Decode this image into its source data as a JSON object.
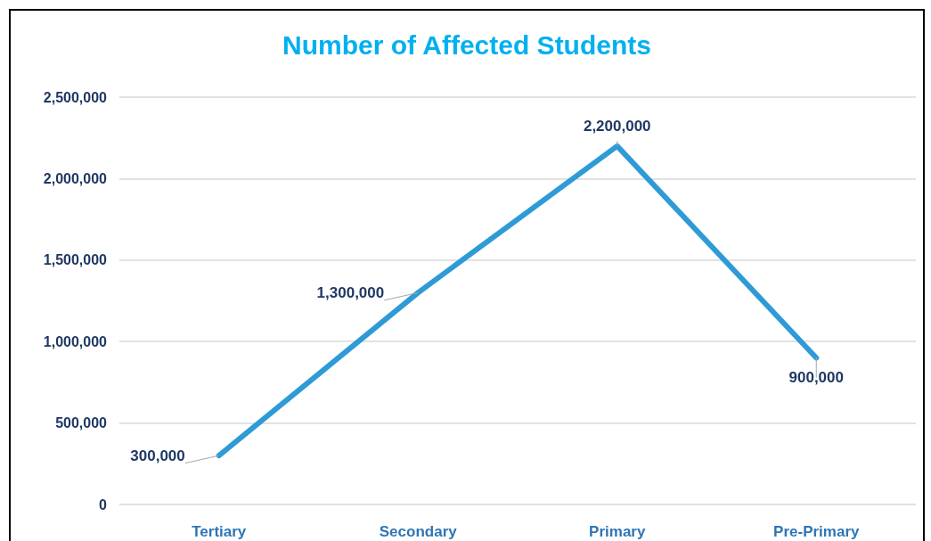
{
  "chart_data": {
    "type": "line",
    "title": "Number of Affected Students",
    "categories": [
      "Tertiary",
      "Secondary",
      "Primary",
      "Pre-Primary"
    ],
    "values": [
      300000,
      1300000,
      2200000,
      900000
    ],
    "value_labels": [
      "300,000",
      "1,300,000",
      "2,200,000",
      "900,000"
    ],
    "color": "#2e9bd6",
    "ylim": [
      0,
      2500000
    ],
    "yticks": [
      {
        "value": 0,
        "label": "0"
      },
      {
        "value": 500000,
        "label": "500,000"
      },
      {
        "value": 1000000,
        "label": "1,000,000"
      },
      {
        "value": 1500000,
        "label": "1,500,000"
      },
      {
        "value": 2000000,
        "label": "2,000,000"
      },
      {
        "value": 2500000,
        "label": "2,500,000"
      }
    ],
    "grid": "y",
    "marker": "none",
    "line_style": "solid"
  }
}
